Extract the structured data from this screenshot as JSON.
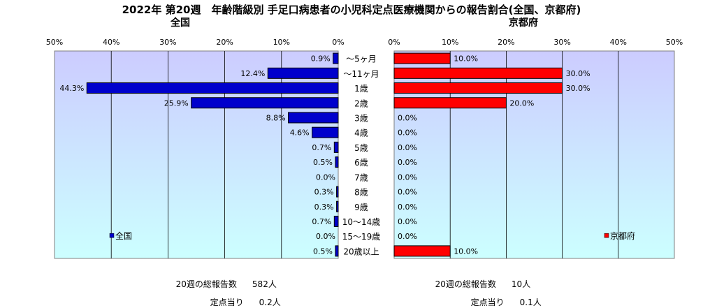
{
  "title": "2022年 第20週　年齢階級別 手足口病患者の小児科定点医療機関からの報告割合(全国、京都府)",
  "colors": {
    "national": "#0000cc",
    "kyoto": "#ff0000",
    "plot_bg_top": "#ccccff",
    "plot_bg_bottom": "#ccffff"
  },
  "chart_data": [
    {
      "type": "bar",
      "orientation": "horizontal",
      "direction": "right-to-left",
      "subtitle": "全国",
      "legend": "全国",
      "legend_position": "bottom-left",
      "xlim": [
        0,
        50
      ],
      "x_ticks": [
        "50%",
        "40%",
        "30%",
        "20%",
        "10%",
        "0%"
      ],
      "categories": [
        "～5ヶ月",
        "～11ヶ月",
        "1歳",
        "2歳",
        "3歳",
        "4歳",
        "5歳",
        "6歳",
        "7歳",
        "8歳",
        "9歳",
        "10～14歳",
        "15～19歳",
        "20歳以上"
      ],
      "values": [
        0.9,
        12.4,
        44.3,
        25.9,
        8.8,
        4.6,
        0.7,
        0.5,
        0.0,
        0.3,
        0.3,
        0.7,
        0.0,
        0.5
      ],
      "value_labels": [
        "0.9%",
        "12.4%",
        "44.3%",
        "25.9%",
        "8.8%",
        "4.6%",
        "0.7%",
        "0.5%",
        "0.0%",
        "0.3%",
        "0.3%",
        "0.7%",
        "0.0%",
        "0.5%"
      ],
      "grid": true
    },
    {
      "type": "bar",
      "orientation": "horizontal",
      "direction": "left-to-right",
      "subtitle": "京都府",
      "legend": "京都府",
      "legend_position": "bottom-right",
      "xlim": [
        0,
        50
      ],
      "x_ticks": [
        "0%",
        "10%",
        "20%",
        "30%",
        "40%",
        "50%"
      ],
      "categories": [
        "～5ヶ月",
        "～11ヶ月",
        "1歳",
        "2歳",
        "3歳",
        "4歳",
        "5歳",
        "6歳",
        "7歳",
        "8歳",
        "9歳",
        "10～14歳",
        "15～19歳",
        "20歳以上"
      ],
      "values": [
        10.0,
        30.0,
        30.0,
        20.0,
        0.0,
        0.0,
        0.0,
        0.0,
        0.0,
        0.0,
        0.0,
        0.0,
        0.0,
        10.0
      ],
      "value_labels": [
        "10.0%",
        "30.0%",
        "30.0%",
        "20.0%",
        "0.0%",
        "0.0%",
        "0.0%",
        "0.0%",
        "0.0%",
        "0.0%",
        "0.0%",
        "0.0%",
        "0.0%",
        "10.0%"
      ],
      "grid": true
    }
  ],
  "footer": {
    "national": {
      "total_label": "20週の総報告数",
      "total_value": "582人",
      "per_label": "定点当り",
      "per_value": "0.2人"
    },
    "kyoto": {
      "total_label": "20週の総報告数",
      "total_value": "10人",
      "per_label": "定点当り",
      "per_value": "0.1人"
    }
  }
}
